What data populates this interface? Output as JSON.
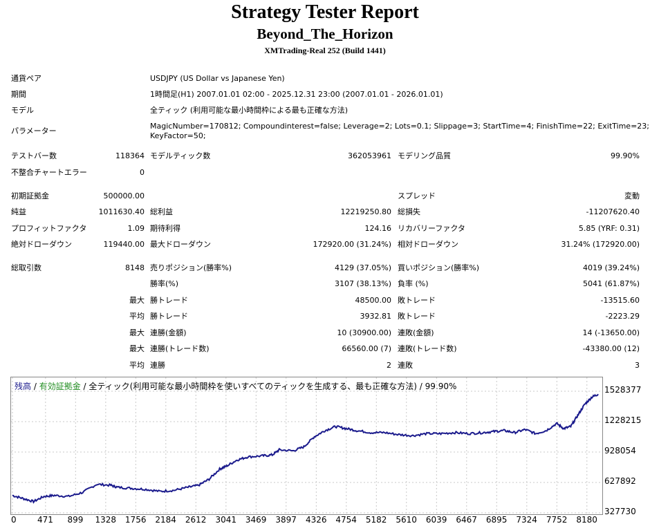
{
  "header": {
    "title": "Strategy Tester Report",
    "ea_name": "Beyond_The_Horizon",
    "server": "XMTrading-Real 252 (Build 1441)"
  },
  "info": [
    {
      "label": "通貨ペア",
      "value": "USDJPY (US Dollar vs Japanese Yen)"
    },
    {
      "label": "期間",
      "value": "1時間足(H1) 2007.01.01 02:00 - 2025.12.31 23:00 (2007.01.01 - 2026.01.01)"
    },
    {
      "label": "モデル",
      "value": "全ティック (利用可能な最小時間枠による最も正確な方法)"
    },
    {
      "label": "パラメーター",
      "value_line1": "MagicNumber=170812; Compoundinterest=false; Leverage=2; Lots=0.1; Slippage=3; StartTime=4; FinishTime=22; ExitTime=23;",
      "value_line2": "KeyFactor=50;"
    }
  ],
  "stats": {
    "test_bars_label": "テストバー数",
    "test_bars": "118364",
    "model_ticks_label": "モデルティック数",
    "model_ticks": "362053961",
    "modeling_quality_label": "モデリング品質",
    "modeling_quality": "99.90%",
    "mismatch_label": "不整合チャートエラー",
    "mismatch": "0",
    "initial_deposit_label": "初期証拠金",
    "initial_deposit": "500000.00",
    "spread_label": "スプレッド",
    "spread": "変動",
    "net_profit_label": "純益",
    "net_profit": "1011630.40",
    "gross_profit_label": "総利益",
    "gross_profit": "12219250.80",
    "gross_loss_label": "総損失",
    "gross_loss": "-11207620.40",
    "profit_factor_label": "プロフィットファクタ",
    "profit_factor": "1.09",
    "expected_payoff_label": "期待利得",
    "expected_payoff": "124.16",
    "recovery_factor_label": "リカバリーファクタ",
    "recovery_factor": "5.85 (YRF: 0.31)",
    "abs_drawdown_label": "絶対ドローダウン",
    "abs_drawdown": "119440.00",
    "max_drawdown_label": "最大ドローダウン",
    "max_drawdown": "172920.00 (31.24%)",
    "rel_drawdown_label": "相対ドローダウン",
    "rel_drawdown": "31.24% (172920.00)",
    "total_trades_label": "総取引数",
    "total_trades": "8148",
    "short_positions_label": "売りポジション(勝率%)",
    "short_positions": "4129 (37.05%)",
    "long_positions_label": "買いポジション(勝率%)",
    "long_positions": "4019 (39.24%)",
    "win_rate_label": "勝率(%)",
    "win_rate": "3107 (38.13%)",
    "loss_rate_label": "負率 (%)",
    "loss_rate": "5041 (61.87%)",
    "max_label": "最大",
    "avg_label": "平均",
    "win_trade_label": "勝トレード",
    "loss_trade_label": "敗トレード",
    "largest_win": "48500.00",
    "largest_loss": "-13515.60",
    "avg_win": "3932.81",
    "avg_loss": "-2223.29",
    "consec_wins_amount_label": "連勝(金額)",
    "consec_losses_amount_label": "連敗(金額)",
    "max_consec_wins": "10 (30900.00)",
    "max_consec_losses": "14 (-13650.00)",
    "consec_wins_trades_label": "連勝(トレード数)",
    "consec_losses_trades_label": "連敗(トレード数)",
    "max_consec_profit": "66560.00 (7)",
    "max_consec_loss": "-43380.00 (12)",
    "consec_wins_label": "連勝",
    "consec_losses_label": "連敗",
    "avg_consec_wins": "2",
    "avg_consec_losses": "3"
  },
  "chart_legend": {
    "balance": "残高",
    "sep1": " / ",
    "equity": "有効証拠金",
    "sep2": " / ",
    "rest": "全ティック(利用可能な最小時間枠を使いすべてのティックを生成する、最も正確な方法) / 99.90%"
  },
  "chart_data": {
    "type": "line",
    "y_ticks": [
      "1528377",
      "1228215",
      "928054",
      "627892",
      "327730"
    ],
    "x_ticks": [
      "0",
      "471",
      "899",
      "1328",
      "1756",
      "2184",
      "2612",
      "3041",
      "3469",
      "3897",
      "4326",
      "4754",
      "5182",
      "5610",
      "6039",
      "6467",
      "6895",
      "7324",
      "7752",
      "8180"
    ],
    "ylim": [
      327730,
      1528377
    ],
    "xlim": [
      0,
      8340
    ],
    "series": [
      {
        "x": [
          0,
          150,
          300,
          450,
          600,
          800,
          1000,
          1200,
          1400,
          1500,
          1700,
          1900,
          2100,
          2300,
          2500,
          2650,
          2800,
          2950,
          3050,
          3200,
          3350,
          3550,
          3700,
          3800,
          4000,
          4150,
          4300,
          4450,
          4600,
          4750,
          4900,
          5100,
          5300,
          5500,
          5700,
          5900,
          6100,
          6300,
          6500,
          6700,
          6850,
          7000,
          7150,
          7300,
          7450,
          7600,
          7750,
          7850,
          7950,
          8050,
          8150,
          8250,
          8340
        ],
        "values": [
          500000,
          470000,
          440000,
          490000,
          500000,
          490000,
          530000,
          610000,
          600000,
          580000,
          570000,
          560000,
          540000,
          550000,
          580000,
          600000,
          660000,
          760000,
          790000,
          850000,
          880000,
          890000,
          900000,
          950000,
          940000,
          980000,
          1080000,
          1140000,
          1180000,
          1160000,
          1140000,
          1120000,
          1120000,
          1100000,
          1090000,
          1110000,
          1110000,
          1120000,
          1110000,
          1120000,
          1130000,
          1140000,
          1120000,
          1150000,
          1110000,
          1140000,
          1210000,
          1160000,
          1180000,
          1290000,
          1400000,
          1470000,
          1500000
        ]
      }
    ]
  }
}
